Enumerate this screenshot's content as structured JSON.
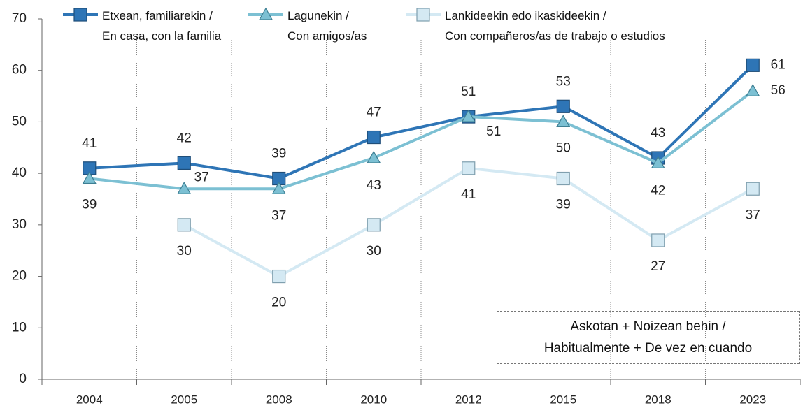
{
  "chart_data": {
    "type": "line",
    "categories": [
      "2004",
      "2005",
      "2008",
      "2010",
      "2012",
      "2015",
      "2018",
      "2023"
    ],
    "series": [
      {
        "name": "Etxean, familiarekin /\nEn casa, con la familia",
        "color": "#2e75b6",
        "marker": "square",
        "values": [
          41,
          42,
          39,
          47,
          51,
          53,
          43,
          61
        ]
      },
      {
        "name": "Lagunekin /\nCon amigos/as",
        "color": "#7cc0d3",
        "marker": "triangle",
        "values": [
          39,
          37,
          37,
          43,
          51,
          50,
          42,
          56
        ]
      },
      {
        "name": "Lankideekin edo ikaskideekin /\nCon compañeros/as de trabajo o estudios",
        "color": "#d4e9f3",
        "marker": "square",
        "values": [
          null,
          30,
          20,
          30,
          41,
          39,
          27,
          37
        ]
      }
    ],
    "annotation": "Askotan + Noizean behin /\nHabitualmente + De vez en cuando",
    "ylim": [
      0,
      70
    ],
    "yticks": [
      0,
      10,
      20,
      30,
      40,
      50,
      60,
      70
    ],
    "grid": "vertical-dotted"
  }
}
